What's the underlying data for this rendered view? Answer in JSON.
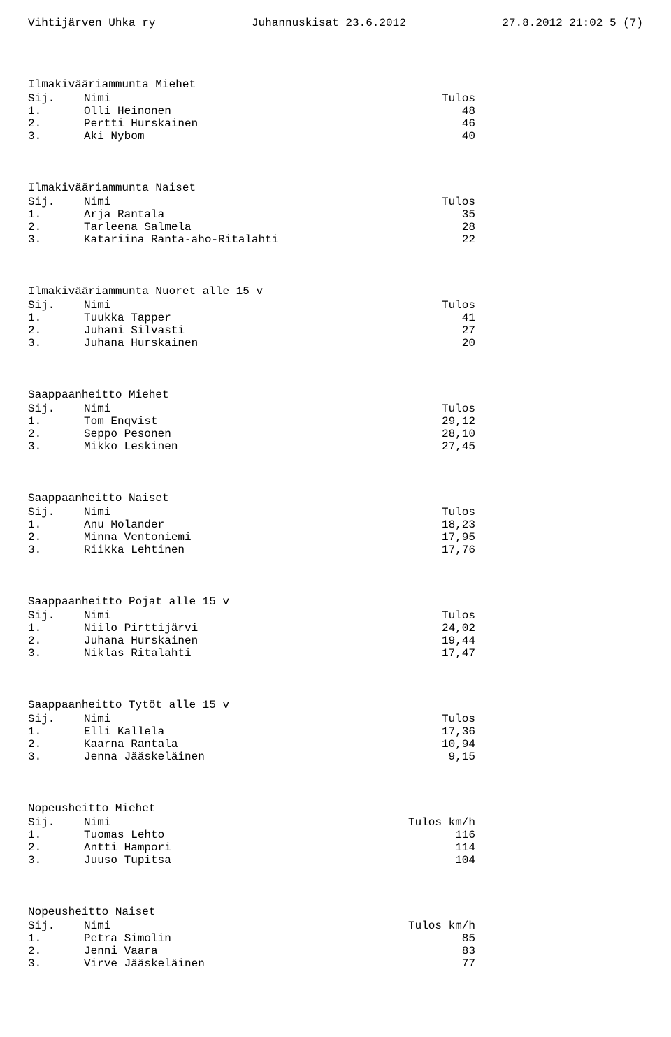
{
  "header": {
    "left": "Vihtijärven Uhka ry",
    "center": "Juhannuskisat 23.6.2012",
    "right": "27.8.2012 21:02 5 (7)"
  },
  "columns": {
    "sij": "Sij.",
    "nimi": "Nimi",
    "tulos": "Tulos",
    "tulos_kmh": "Tulos km/h"
  },
  "sections": [
    {
      "title": "Ilmakivääriammunta Miehet",
      "result_header": "tulos",
      "rows": [
        {
          "sij": "1.",
          "nimi": "Olli Heinonen",
          "tulos": "48"
        },
        {
          "sij": "2.",
          "nimi": "Pertti Hurskainen",
          "tulos": "46"
        },
        {
          "sij": "3.",
          "nimi": "Aki Nybom",
          "tulos": "40"
        }
      ]
    },
    {
      "title": "Ilmakivääriammunta Naiset",
      "result_header": "tulos",
      "rows": [
        {
          "sij": "1.",
          "nimi": "Arja Rantala",
          "tulos": "35"
        },
        {
          "sij": "2.",
          "nimi": "Tarleena Salmela",
          "tulos": "28"
        },
        {
          "sij": "3.",
          "nimi": "Katariina Ranta-aho-Ritalahti",
          "tulos": "22"
        }
      ]
    },
    {
      "title": "Ilmakivääriammunta Nuoret alle 15 v",
      "result_header": "tulos",
      "rows": [
        {
          "sij": "1.",
          "nimi": "Tuukka Tapper",
          "tulos": "41"
        },
        {
          "sij": "2.",
          "nimi": "Juhani Silvasti",
          "tulos": "27"
        },
        {
          "sij": "3.",
          "nimi": "Juhana Hurskainen",
          "tulos": "20"
        }
      ]
    },
    {
      "title": "Saappaanheitto Miehet",
      "result_header": "tulos",
      "rows": [
        {
          "sij": "1.",
          "nimi": "Tom Enqvist",
          "tulos": "29,12"
        },
        {
          "sij": "2.",
          "nimi": "Seppo Pesonen",
          "tulos": "28,10"
        },
        {
          "sij": "3.",
          "nimi": "Mikko Leskinen",
          "tulos": "27,45"
        }
      ]
    },
    {
      "title": "Saappaanheitto Naiset",
      "result_header": "tulos",
      "rows": [
        {
          "sij": "1.",
          "nimi": "Anu Molander",
          "tulos": "18,23"
        },
        {
          "sij": "2.",
          "nimi": "Minna Ventoniemi",
          "tulos": "17,95"
        },
        {
          "sij": "3.",
          "nimi": "Riikka Lehtinen",
          "tulos": "17,76"
        }
      ]
    },
    {
      "title": "Saappaanheitto Pojat alle 15 v",
      "result_header": "tulos",
      "rows": [
        {
          "sij": "1.",
          "nimi": "Niilo Pirttijärvi",
          "tulos": "24,02"
        },
        {
          "sij": "2.",
          "nimi": "Juhana Hurskainen",
          "tulos": "19,44"
        },
        {
          "sij": "3.",
          "nimi": "Niklas Ritalahti",
          "tulos": "17,47"
        }
      ]
    },
    {
      "title": "Saappaanheitto Tytöt alle 15 v",
      "result_header": "tulos",
      "rows": [
        {
          "sij": "1.",
          "nimi": "Elli Kallela",
          "tulos": "17,36"
        },
        {
          "sij": "2.",
          "nimi": "Kaarna Rantala",
          "tulos": "10,94"
        },
        {
          "sij": "3.",
          "nimi": "Jenna Jääskeläinen",
          "tulos": "9,15"
        }
      ]
    },
    {
      "title": "Nopeusheitto Miehet",
      "result_header": "tulos_kmh",
      "rows": [
        {
          "sij": "1.",
          "nimi": "Tuomas Lehto",
          "tulos": "116"
        },
        {
          "sij": "2.",
          "nimi": "Antti Hampori",
          "tulos": "114"
        },
        {
          "sij": "3.",
          "nimi": "Juuso Tupitsa",
          "tulos": "104"
        }
      ]
    },
    {
      "title": "Nopeusheitto Naiset",
      "result_header": "tulos_kmh",
      "rows": [
        {
          "sij": "1.",
          "nimi": "Petra Simolin",
          "tulos": "85"
        },
        {
          "sij": "2.",
          "nimi": "Jenni Vaara",
          "tulos": "83"
        },
        {
          "sij": "3.",
          "nimi": "Virve Jääskeläinen",
          "tulos": "77"
        }
      ]
    }
  ]
}
